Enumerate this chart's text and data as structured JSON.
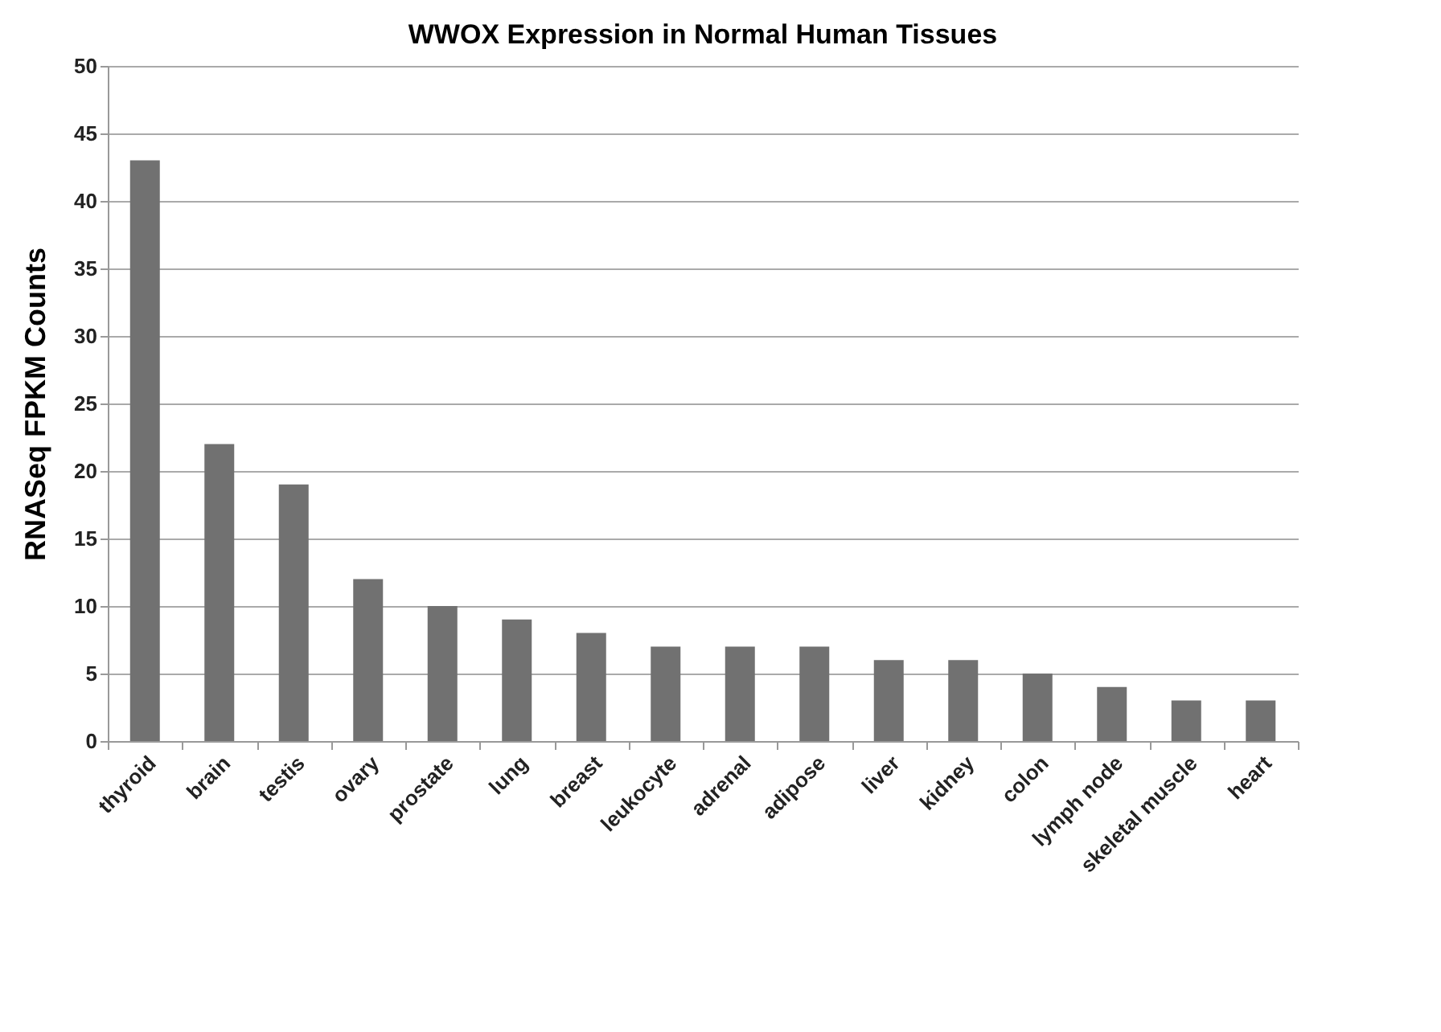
{
  "chart_data": {
    "type": "bar",
    "title": "WWOX Expression in Normal Human Tissues",
    "ylabel": "RNASeq FPKM Counts",
    "categories": [
      "thyroid",
      "brain",
      "testis",
      "ovary",
      "prostate",
      "lung",
      "breast",
      "leukocyte",
      "adrenal",
      "adipose",
      "liver",
      "kidney",
      "colon",
      "lymph node",
      "skeletal muscle",
      "heart"
    ],
    "values": [
      43,
      22,
      19,
      12,
      10,
      9,
      8,
      7,
      7,
      7,
      6,
      6,
      5,
      4,
      3,
      3
    ],
    "color": "#717171",
    "ylim": [
      0,
      50
    ],
    "yticks": [
      0,
      5,
      10,
      15,
      20,
      25,
      30,
      35,
      40,
      45,
      50
    ],
    "grid": "y"
  }
}
